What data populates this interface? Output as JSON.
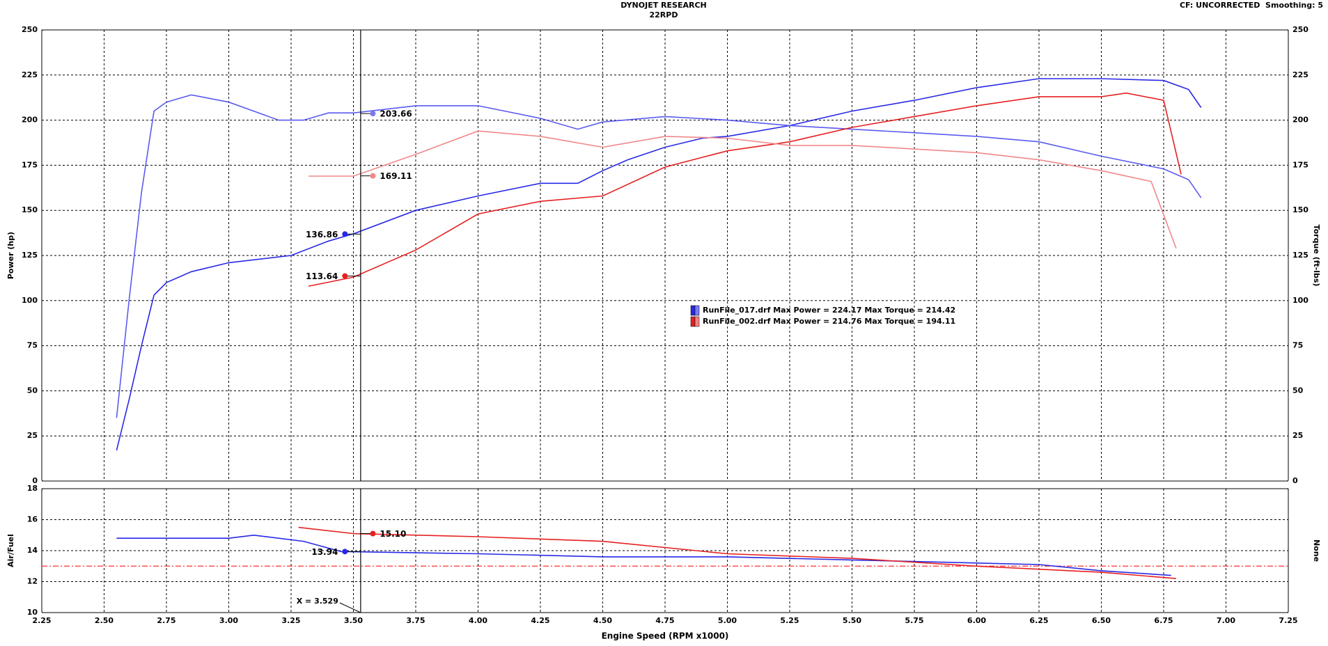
{
  "chart_data": [
    {
      "type": "line",
      "title": "DYNOJET RESEARCH",
      "subtitle": "22RPD",
      "header_right": "CF: UNCORRECTED  Smoothing: 5",
      "ylabel": "Power (hp)",
      "y2label": "Torque (ft-lbs)",
      "xlim": [
        2.25,
        7.25
      ],
      "ylim": [
        0,
        250
      ],
      "yticks": [
        0,
        25,
        50,
        75,
        100,
        125,
        150,
        175,
        200,
        225,
        250
      ],
      "y2lim": [
        0,
        250
      ],
      "y2ticks": [
        0,
        25,
        50,
        75,
        100,
        125,
        150,
        175,
        200,
        225,
        250
      ],
      "grid": true,
      "series": [
        {
          "color": "#2828e6",
          "x": [
            2.55,
            2.6,
            2.65,
            2.7,
            2.75,
            2.85,
            3.0,
            3.25,
            3.4,
            3.5,
            3.75,
            4.0,
            4.25,
            4.4,
            4.5,
            4.6,
            4.75,
            4.9,
            5.0,
            5.25,
            5.5,
            5.75,
            6.0,
            6.25,
            6.5,
            6.75,
            6.85,
            6.9
          ],
          "values": [
            17,
            45,
            75,
            103,
            110,
            116,
            121,
            125,
            133,
            137,
            150,
            158,
            165,
            165,
            172,
            178,
            185,
            190,
            191,
            197,
            205,
            211,
            218,
            223,
            223,
            222,
            217,
            207
          ]
        },
        {
          "color": "#5a5af0",
          "axis": "y2",
          "x": [
            2.55,
            2.6,
            2.65,
            2.7,
            2.75,
            2.85,
            3.0,
            3.1,
            3.2,
            3.3,
            3.4,
            3.5,
            3.75,
            4.0,
            4.25,
            4.4,
            4.5,
            4.75,
            5.0,
            5.25,
            5.5,
            5.75,
            6.0,
            6.25,
            6.5,
            6.75,
            6.85,
            6.9
          ],
          "values": [
            35,
            100,
            160,
            205,
            210,
            214,
            210,
            205,
            200,
            200,
            204,
            204,
            208,
            208,
            201,
            195,
            199,
            202,
            200,
            197,
            195,
            193,
            191,
            188,
            180,
            173,
            167,
            157
          ]
        },
        {
          "color": "#e62020",
          "x": [
            3.32,
            3.5,
            3.75,
            4.0,
            4.25,
            4.5,
            4.75,
            5.0,
            5.25,
            5.5,
            5.75,
            6.0,
            6.25,
            6.5,
            6.6,
            6.75,
            6.82
          ],
          "values": [
            108,
            113,
            128,
            148,
            155,
            158,
            174,
            183,
            188,
            196,
            202,
            208,
            213,
            213,
            215,
            211,
            170
          ]
        },
        {
          "color": "#f08888",
          "axis": "y2",
          "x": [
            3.32,
            3.5,
            3.75,
            4.0,
            4.25,
            4.5,
            4.75,
            5.0,
            5.25,
            5.5,
            5.75,
            6.0,
            6.25,
            6.5,
            6.7,
            6.8
          ],
          "values": [
            169,
            169,
            181,
            194,
            191,
            185,
            191,
            190,
            186,
            186,
            184,
            182,
            178,
            172,
            166,
            129
          ]
        }
      ],
      "markers": [
        {
          "x": 3.578,
          "y": 203.66,
          "color": "#7a7af0"
        },
        {
          "x": 3.578,
          "y": 169.11,
          "color": "#f08888"
        },
        {
          "x": 3.466,
          "y": 136.86,
          "color": "#2828e6"
        },
        {
          "x": 3.466,
          "y": 113.64,
          "color": "#e62020"
        }
      ],
      "legend_entries": [
        {
          "label": "RunFile_017.drf Max Power = 224.17 Max Torque = 214.42",
          "colors": [
            "#2828e6",
            "#7a7af0"
          ]
        },
        {
          "label": "RunFile_002.drf Max Power = 214.76 Max Torque = 194.11",
          "colors": [
            "#e62020",
            "#f08888"
          ]
        }
      ]
    },
    {
      "type": "line",
      "ylabel": "Air/Fuel",
      "y2label": "None",
      "xlabel": "Engine Speed (RPM x1000)",
      "xlim": [
        2.25,
        7.25
      ],
      "xticks": [
        2.25,
        {
          "value": 2.5,
          "label": "2.50"
        },
        2.75,
        {
          "value": 3.0,
          "label": "3.00"
        },
        3.25,
        {
          "value": 3.5,
          "label": "3.50"
        },
        3.75,
        {
          "value": 4.0,
          "label": "4.00"
        },
        4.25,
        {
          "value": 4.5,
          "label": "4.50"
        },
        4.75,
        {
          "value": 5.0,
          "label": "5.00"
        },
        5.25,
        {
          "value": 5.5,
          "label": "5.50"
        },
        5.75,
        {
          "value": 6.0,
          "label": "6.00"
        },
        6.25,
        {
          "value": 6.5,
          "label": "6.50"
        },
        6.75,
        {
          "value": 7.0,
          "label": "7.00"
        },
        7.25
      ],
      "ylim": [
        10,
        18
      ],
      "yticks": [
        10,
        12,
        14,
        16,
        18
      ],
      "grid": true,
      "reference_line": {
        "value": 13,
        "color": "#ff3030"
      },
      "series": [
        {
          "color": "#2828e6",
          "x": [
            2.55,
            3.0,
            3.1,
            3.3,
            3.45,
            4.0,
            4.5,
            5.0,
            5.5,
            6.0,
            6.25,
            6.5,
            6.78
          ],
          "values": [
            14.8,
            14.8,
            15.0,
            14.6,
            13.94,
            13.8,
            13.6,
            13.6,
            13.4,
            13.2,
            13.1,
            12.7,
            12.4
          ]
        },
        {
          "color": "#e62020",
          "x": [
            3.28,
            3.5,
            4.0,
            4.5,
            5.0,
            5.5,
            6.0,
            6.5,
            6.8
          ],
          "values": [
            15.5,
            15.1,
            14.9,
            14.6,
            13.8,
            13.5,
            13.0,
            12.6,
            12.2
          ]
        }
      ],
      "markers": [
        {
          "x": 3.578,
          "y": 15.1,
          "label": "15.10",
          "color": "#e62020"
        },
        {
          "x": 3.466,
          "y": 13.94,
          "color": "#2828e6"
        }
      ],
      "cursor": {
        "x": 3.529,
        "label": "X = 3.529"
      }
    }
  ]
}
